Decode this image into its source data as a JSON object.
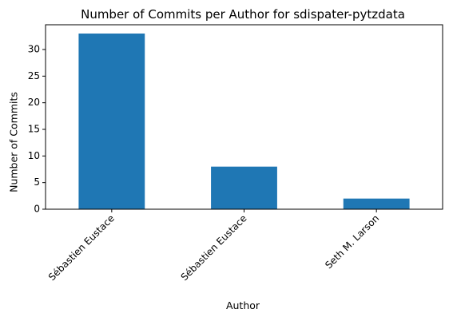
{
  "chart_data": {
    "type": "bar",
    "title": "Number of Commits per Author for sdispater-pytzdata",
    "xlabel": "Author",
    "ylabel": "Number of Commits",
    "categories": [
      "Sébastien Eustace",
      "Sébastien Eustace",
      "Seth M. Larson"
    ],
    "values": [
      33,
      8,
      2
    ],
    "ylim": [
      0,
      34.65
    ],
    "yticks": [
      0,
      5,
      10,
      15,
      20,
      25,
      30
    ],
    "bar_color": "#1f77b4",
    "grid": false,
    "legend": "none"
  }
}
